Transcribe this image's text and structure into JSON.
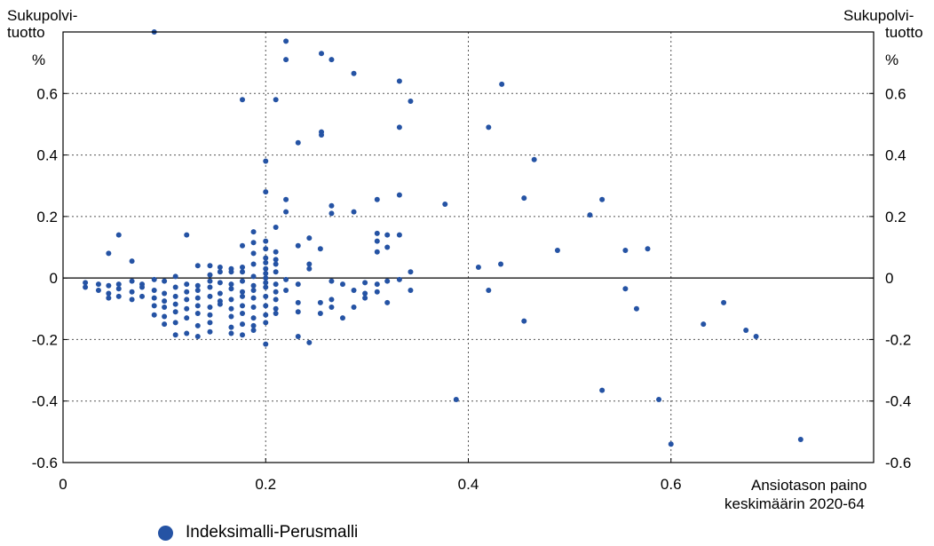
{
  "chart_data": {
    "type": "scatter",
    "ylabel_left": [
      "Sukupolvi-",
      "tuotto"
    ],
    "ylabel_right": [
      "Sukupolvi-",
      "tuotto"
    ],
    "yunit_left": "%",
    "yunit_right": "%",
    "xlabel": [
      "Ansiotason paino",
      "keskimäärin 2020-64"
    ],
    "xlim": [
      0,
      0.8
    ],
    "ylim": [
      -0.6,
      0.8
    ],
    "x_ticks": [
      "0",
      "0.2",
      "0.4",
      "0.6"
    ],
    "y_ticks": [
      "0.6",
      "0.4",
      "0.2",
      "0",
      "-0.2",
      "-0.4",
      "-0.6"
    ],
    "grid": true,
    "legend_position": "bottom-left",
    "colors": {
      "series": "#2553a4",
      "axis": "#000000",
      "grid": "#555555"
    },
    "series": [
      {
        "name": "Indeksimalli-Perusmalli",
        "points": [
          [
            0.09,
            0.8
          ],
          [
            0.22,
            0.77
          ],
          [
            0.255,
            0.73
          ],
          [
            0.22,
            0.71
          ],
          [
            0.265,
            0.71
          ],
          [
            0.287,
            0.665
          ],
          [
            0.332,
            0.64
          ],
          [
            0.433,
            0.63
          ],
          [
            0.177,
            0.58
          ],
          [
            0.21,
            0.58
          ],
          [
            0.343,
            0.575
          ],
          [
            0.255,
            0.475
          ],
          [
            0.255,
            0.465
          ],
          [
            0.332,
            0.49
          ],
          [
            0.42,
            0.49
          ],
          [
            0.232,
            0.44
          ],
          [
            0.465,
            0.385
          ],
          [
            0.2,
            0.38
          ],
          [
            0.2,
            0.28
          ],
          [
            0.332,
            0.27
          ],
          [
            0.31,
            0.255
          ],
          [
            0.22,
            0.255
          ],
          [
            0.377,
            0.24
          ],
          [
            0.455,
            0.26
          ],
          [
            0.532,
            0.255
          ],
          [
            0.265,
            0.235
          ],
          [
            0.22,
            0.215
          ],
          [
            0.265,
            0.21
          ],
          [
            0.287,
            0.215
          ],
          [
            0.52,
            0.205
          ],
          [
            0.21,
            0.165
          ],
          [
            0.055,
            0.14
          ],
          [
            0.122,
            0.14
          ],
          [
            0.188,
            0.15
          ],
          [
            0.31,
            0.145
          ],
          [
            0.32,
            0.14
          ],
          [
            0.332,
            0.14
          ],
          [
            0.243,
            0.13
          ],
          [
            0.31,
            0.12
          ],
          [
            0.188,
            0.115
          ],
          [
            0.2,
            0.12
          ],
          [
            0.232,
            0.105
          ],
          [
            0.254,
            0.095
          ],
          [
            0.31,
            0.085
          ],
          [
            0.32,
            0.1
          ],
          [
            0.2,
            0.095
          ],
          [
            0.21,
            0.085
          ],
          [
            0.177,
            0.105
          ],
          [
            0.488,
            0.09
          ],
          [
            0.555,
            0.09
          ],
          [
            0.577,
            0.095
          ],
          [
            0.045,
            0.08
          ],
          [
            0.188,
            0.08
          ],
          [
            0.2,
            0.065
          ],
          [
            0.21,
            0.06
          ],
          [
            0.068,
            0.055
          ],
          [
            0.2,
            0.05
          ],
          [
            0.21,
            0.045
          ],
          [
            0.188,
            0.045
          ],
          [
            0.243,
            0.045
          ],
          [
            0.432,
            0.045
          ],
          [
            0.41,
            0.035
          ],
          [
            0.133,
            0.04
          ],
          [
            0.145,
            0.04
          ],
          [
            0.155,
            0.035
          ],
          [
            0.166,
            0.03
          ],
          [
            0.177,
            0.035
          ],
          [
            0.2,
            0.03
          ],
          [
            0.243,
            0.03
          ],
          [
            0.343,
            0.02
          ],
          [
            0.155,
            0.02
          ],
          [
            0.166,
            0.02
          ],
          [
            0.177,
            0.02
          ],
          [
            0.2,
            0.015
          ],
          [
            0.21,
            0.02
          ],
          [
            0.145,
            0.01
          ],
          [
            0.111,
            0.005
          ],
          [
            0.188,
            0.005
          ],
          [
            0.2,
            0.0
          ],
          [
            0.022,
            -0.015
          ],
          [
            0.035,
            -0.02
          ],
          [
            0.045,
            -0.025
          ],
          [
            0.055,
            -0.02
          ],
          [
            0.068,
            -0.01
          ],
          [
            0.078,
            -0.02
          ],
          [
            0.09,
            -0.005
          ],
          [
            0.1,
            -0.01
          ],
          [
            0.122,
            -0.02
          ],
          [
            0.133,
            -0.025
          ],
          [
            0.145,
            -0.01
          ],
          [
            0.155,
            -0.015
          ],
          [
            0.166,
            -0.02
          ],
          [
            0.177,
            -0.01
          ],
          [
            0.188,
            -0.025
          ],
          [
            0.2,
            -0.015
          ],
          [
            0.21,
            -0.02
          ],
          [
            0.22,
            -0.005
          ],
          [
            0.232,
            -0.02
          ],
          [
            0.265,
            -0.01
          ],
          [
            0.276,
            -0.02
          ],
          [
            0.298,
            -0.015
          ],
          [
            0.31,
            -0.02
          ],
          [
            0.32,
            -0.01
          ],
          [
            0.332,
            -0.005
          ],
          [
            0.022,
            -0.03
          ],
          [
            0.035,
            -0.04
          ],
          [
            0.045,
            -0.05
          ],
          [
            0.055,
            -0.035
          ],
          [
            0.068,
            -0.045
          ],
          [
            0.078,
            -0.03
          ],
          [
            0.09,
            -0.04
          ],
          [
            0.1,
            -0.05
          ],
          [
            0.111,
            -0.03
          ],
          [
            0.122,
            -0.045
          ],
          [
            0.133,
            -0.04
          ],
          [
            0.145,
            -0.03
          ],
          [
            0.155,
            -0.05
          ],
          [
            0.166,
            -0.035
          ],
          [
            0.177,
            -0.045
          ],
          [
            0.188,
            -0.04
          ],
          [
            0.2,
            -0.03
          ],
          [
            0.21,
            -0.045
          ],
          [
            0.22,
            -0.04
          ],
          [
            0.287,
            -0.04
          ],
          [
            0.298,
            -0.05
          ],
          [
            0.31,
            -0.045
          ],
          [
            0.343,
            -0.04
          ],
          [
            0.42,
            -0.04
          ],
          [
            0.555,
            -0.035
          ],
          [
            0.045,
            -0.065
          ],
          [
            0.055,
            -0.06
          ],
          [
            0.068,
            -0.07
          ],
          [
            0.078,
            -0.06
          ],
          [
            0.09,
            -0.065
          ],
          [
            0.1,
            -0.075
          ],
          [
            0.111,
            -0.06
          ],
          [
            0.122,
            -0.07
          ],
          [
            0.133,
            -0.065
          ],
          [
            0.145,
            -0.06
          ],
          [
            0.155,
            -0.075
          ],
          [
            0.166,
            -0.07
          ],
          [
            0.177,
            -0.06
          ],
          [
            0.188,
            -0.065
          ],
          [
            0.2,
            -0.06
          ],
          [
            0.21,
            -0.07
          ],
          [
            0.232,
            -0.08
          ],
          [
            0.254,
            -0.08
          ],
          [
            0.265,
            -0.07
          ],
          [
            0.298,
            -0.065
          ],
          [
            0.32,
            -0.08
          ],
          [
            0.652,
            -0.08
          ],
          [
            0.09,
            -0.09
          ],
          [
            0.1,
            -0.095
          ],
          [
            0.111,
            -0.085
          ],
          [
            0.122,
            -0.1
          ],
          [
            0.133,
            -0.09
          ],
          [
            0.145,
            -0.095
          ],
          [
            0.155,
            -0.085
          ],
          [
            0.166,
            -0.1
          ],
          [
            0.177,
            -0.09
          ],
          [
            0.188,
            -0.095
          ],
          [
            0.2,
            -0.09
          ],
          [
            0.21,
            -0.1
          ],
          [
            0.265,
            -0.095
          ],
          [
            0.287,
            -0.095
          ],
          [
            0.566,
            -0.1
          ],
          [
            0.09,
            -0.12
          ],
          [
            0.1,
            -0.125
          ],
          [
            0.111,
            -0.11
          ],
          [
            0.122,
            -0.13
          ],
          [
            0.133,
            -0.115
          ],
          [
            0.145,
            -0.12
          ],
          [
            0.166,
            -0.125
          ],
          [
            0.177,
            -0.115
          ],
          [
            0.188,
            -0.13
          ],
          [
            0.2,
            -0.12
          ],
          [
            0.21,
            -0.115
          ],
          [
            0.232,
            -0.11
          ],
          [
            0.254,
            -0.115
          ],
          [
            0.276,
            -0.13
          ],
          [
            0.1,
            -0.15
          ],
          [
            0.111,
            -0.145
          ],
          [
            0.133,
            -0.155
          ],
          [
            0.145,
            -0.145
          ],
          [
            0.166,
            -0.16
          ],
          [
            0.177,
            -0.15
          ],
          [
            0.188,
            -0.155
          ],
          [
            0.2,
            -0.145
          ],
          [
            0.455,
            -0.14
          ],
          [
            0.632,
            -0.15
          ],
          [
            0.111,
            -0.185
          ],
          [
            0.122,
            -0.18
          ],
          [
            0.133,
            -0.19
          ],
          [
            0.145,
            -0.175
          ],
          [
            0.166,
            -0.18
          ],
          [
            0.177,
            -0.185
          ],
          [
            0.188,
            -0.17
          ],
          [
            0.674,
            -0.17
          ],
          [
            0.684,
            -0.19
          ],
          [
            0.232,
            -0.19
          ],
          [
            0.243,
            -0.21
          ],
          [
            0.2,
            -0.215
          ],
          [
            0.532,
            -0.365
          ],
          [
            0.388,
            -0.395
          ],
          [
            0.588,
            -0.395
          ],
          [
            0.6,
            -0.54
          ],
          [
            0.728,
            -0.525
          ]
        ]
      }
    ]
  }
}
